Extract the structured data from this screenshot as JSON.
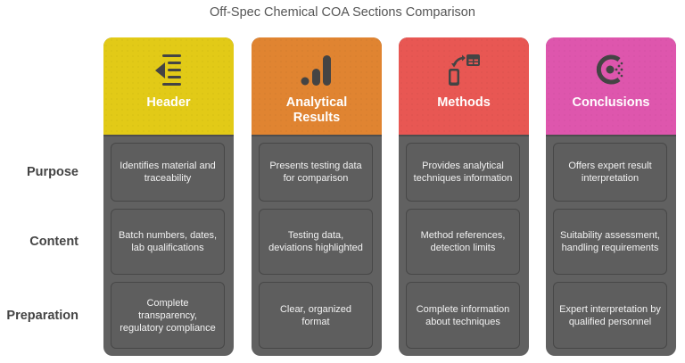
{
  "title": "Off-Spec Chemical COA Sections Comparison",
  "rows": [
    {
      "label": "Purpose"
    },
    {
      "label": "Content"
    },
    {
      "label": "Preparation"
    }
  ],
  "columns": [
    {
      "title": "Header",
      "icon": "outdent-list-icon",
      "color": "#E2CA17",
      "cells": [
        "Identifies material and traceability",
        "Batch numbers, dates, lab qualifications",
        "Complete transparency, regulatory compliance"
      ]
    },
    {
      "title": "Analytical Results",
      "icon": "bar-signal-icon",
      "color": "#E08431",
      "cells": [
        "Presents testing data for comparison",
        "Testing data, deviations highlighted",
        "Clear, organized format"
      ]
    },
    {
      "title": "Methods",
      "icon": "device-transfer-icon",
      "color": "#E85753",
      "cells": [
        "Provides analytical techniques information",
        "Method references, detection limits",
        "Complete information about techniques"
      ]
    },
    {
      "title": "Conclusions",
      "icon": "consul-c-icon",
      "color": "#DE56AD",
      "cells": [
        "Offers expert result interpretation",
        "Suitability assessment, handling requirements",
        "Expert interpretation by qualified personnel"
      ]
    }
  ],
  "colors": {
    "body": "#616161",
    "cell": "#5E5E5E",
    "cell_border": "#474747",
    "icon": "#444444"
  }
}
